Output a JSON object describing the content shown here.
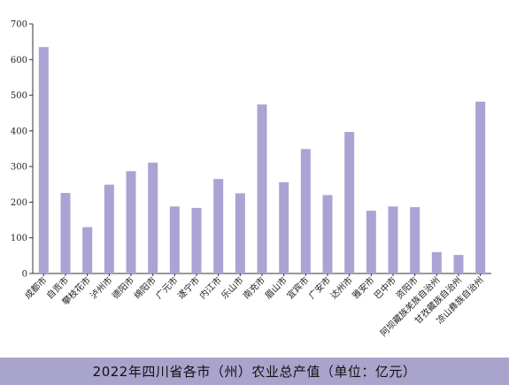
{
  "chart_data": {
    "type": "bar",
    "title": "2022年四川省各市（州）农业总产值（单位：亿元）",
    "xlabel": "",
    "ylabel": "",
    "ylim": [
      0,
      700
    ],
    "yticks": [
      "0",
      "100",
      "200",
      "300",
      "400",
      "500",
      "600",
      "700"
    ],
    "grid": false,
    "bar_color": "#a9a4d4",
    "categories": [
      "成都市",
      "自贡市",
      "攀枝花市",
      "泸州市",
      "德阳市",
      "绵阳市",
      "广元市",
      "遂宁市",
      "内江市",
      "乐山市",
      "南充市",
      "眉山市",
      "宜宾市",
      "广安市",
      "达州市",
      "雅安市",
      "巴中市",
      "资阳市",
      "阿坝藏族羌族自治州",
      "甘孜藏族自治州",
      "凉山彝族自治州"
    ],
    "values": [
      635,
      226,
      130,
      249,
      287,
      311,
      188,
      184,
      265,
      225,
      474,
      256,
      349,
      220,
      397,
      176,
      188,
      186,
      60,
      52,
      482
    ]
  }
}
